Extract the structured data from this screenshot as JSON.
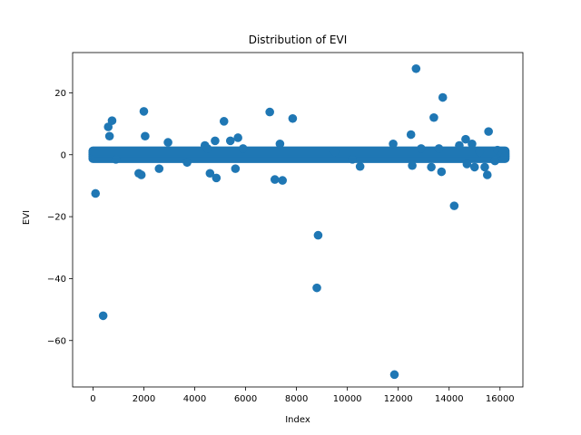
{
  "chart_data": {
    "type": "scatter",
    "title": "Distribution of EVI",
    "xlabel": "Index",
    "ylabel": "EVI",
    "xlim": [
      -800,
      16900
    ],
    "ylim": [
      -75,
      33
    ],
    "xticks": [
      0,
      2000,
      4000,
      6000,
      8000,
      10000,
      12000,
      14000,
      16000
    ],
    "yticks": [
      -60,
      -40,
      -20,
      0,
      20
    ],
    "grid": false,
    "marker_color": "#1f77b4",
    "band": {
      "x_start": 0,
      "x_end": 16200,
      "y_values": [
        -1.2,
        -0.6,
        0,
        0.6,
        1.2
      ]
    },
    "points": [
      [
        100,
        -12.5
      ],
      [
        400,
        -52
      ],
      [
        600,
        9
      ],
      [
        650,
        6
      ],
      [
        750,
        11
      ],
      [
        900,
        -1.5
      ],
      [
        1800,
        -6
      ],
      [
        1900,
        -6.5
      ],
      [
        2000,
        14
      ],
      [
        2050,
        6
      ],
      [
        2600,
        -4.5
      ],
      [
        2950,
        4
      ],
      [
        3700,
        -2.5
      ],
      [
        4400,
        3
      ],
      [
        4500,
        2
      ],
      [
        4600,
        -6
      ],
      [
        4800,
        4.5
      ],
      [
        4850,
        -7.5
      ],
      [
        5150,
        10.8
      ],
      [
        5400,
        4.5
      ],
      [
        5600,
        -4.5
      ],
      [
        5700,
        5.5
      ],
      [
        5900,
        2
      ],
      [
        6950,
        13.8
      ],
      [
        7150,
        -8
      ],
      [
        7350,
        3.5
      ],
      [
        7450,
        -8.3
      ],
      [
        7850,
        11.7
      ],
      [
        8800,
        -43
      ],
      [
        8850,
        -26
      ],
      [
        9500,
        1
      ],
      [
        10200,
        -1.5
      ],
      [
        10500,
        -3.8
      ],
      [
        11800,
        3.5
      ],
      [
        11850,
        -71
      ],
      [
        12500,
        6.5
      ],
      [
        12550,
        -3.5
      ],
      [
        12700,
        27.8
      ],
      [
        12900,
        2
      ],
      [
        13300,
        -4
      ],
      [
        13400,
        12
      ],
      [
        13600,
        2
      ],
      [
        13700,
        -5.5
      ],
      [
        13750,
        18.5
      ],
      [
        14200,
        -16.5
      ],
      [
        14400,
        3
      ],
      [
        14650,
        5
      ],
      [
        14700,
        -3
      ],
      [
        14900,
        3.5
      ],
      [
        15000,
        -4
      ],
      [
        15200,
        1
      ],
      [
        15400,
        -4
      ],
      [
        15500,
        -6.5
      ],
      [
        15550,
        7.5
      ],
      [
        15800,
        -2
      ],
      [
        15900,
        1.5
      ],
      [
        16100,
        0.5
      ],
      [
        16200,
        -0.5
      ]
    ]
  }
}
